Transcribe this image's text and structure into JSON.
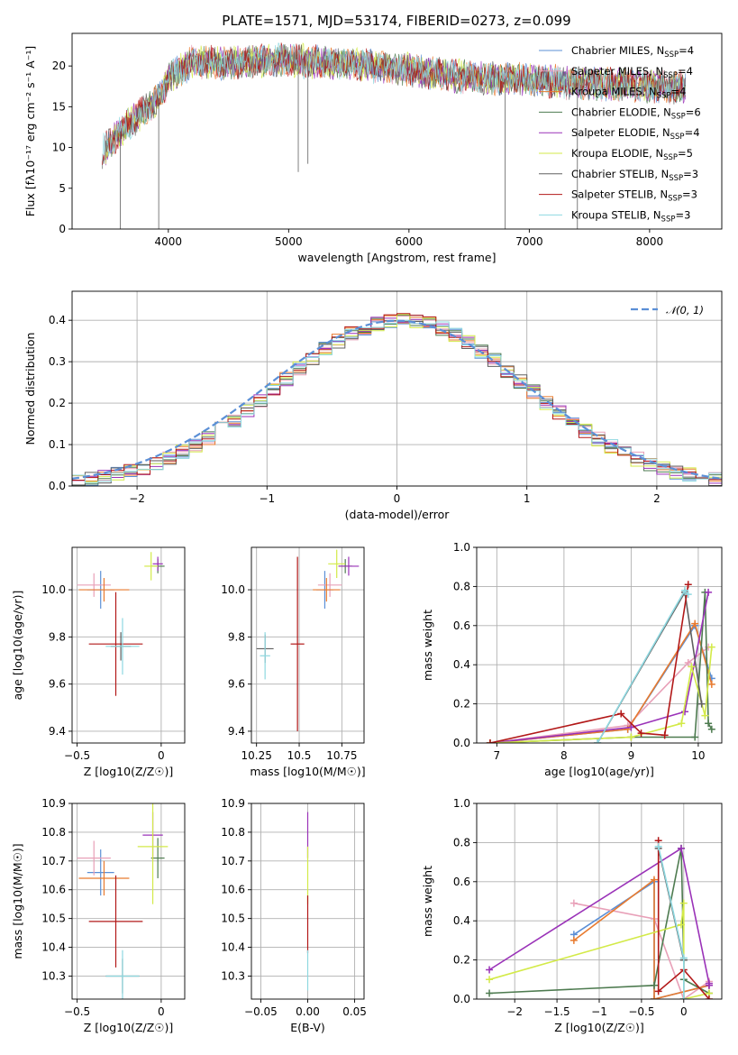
{
  "title": "PLATE=1571, MJD=53174, FIBERID=0273, z=0.099",
  "colors": {
    "chabrier_miles": "#5b8fd6",
    "salpeter_miles": "#e8a0b8",
    "kroupa_miles": "#e87a2e",
    "chabrier_elodie": "#4e7b50",
    "salpeter_elodie": "#9a32b8",
    "kroupa_elodie": "#d3ea48",
    "chabrier_stelib": "#606060",
    "salpeter_stelib": "#b21818",
    "kroupa_stelib": "#8ed8e0",
    "normal": "#5b8fd6"
  },
  "chart_data": [
    {
      "id": "spectrum",
      "type": "line",
      "title": "PLATE=1571, MJD=53174, FIBERID=0273, z=0.099",
      "xlabel": "wavelength [Angstrom, rest frame]",
      "ylabel": "Flux [fλ10⁻¹⁷ erg cm⁻² s⁻¹ A⁻¹]",
      "xlim": [
        3200,
        8600
      ],
      "ylim": [
        0,
        24
      ],
      "xticks": [
        4000,
        5000,
        6000,
        7000,
        8000
      ],
      "yticks": [
        0,
        5,
        10,
        15,
        20
      ],
      "legend_position": "upper right",
      "legend": [
        "Chabrier MILES, N_SSP=4",
        "Salpeter MILES, N_SSP=4",
        "Kroupa MILES, N_SSP=4",
        "Chabrier ELODIE, N_SSP=6",
        "Salpeter ELODIE, N_SSP=4",
        "Kroupa ELODIE, N_SSP=5",
        "Chabrier STELIB, N_SSP=3",
        "Salpeter STELIB, N_SSP=3",
        "Kroupa STELIB, N_SSP=3"
      ],
      "continuum": {
        "x": [
          3450,
          3600,
          3800,
          3950,
          4000,
          4200,
          4500,
          5000,
          5200,
          5500,
          6000,
          6500,
          7000,
          7500,
          8000,
          8300
        ],
        "y": [
          9.5,
          12,
          14.5,
          16.5,
          18.5,
          20.5,
          20.3,
          20.8,
          20.5,
          20.3,
          19.5,
          18.6,
          18.3,
          17.8,
          17.5,
          17.2
        ]
      },
      "spikes": [
        {
          "x": 3920,
          "y": 0
        },
        {
          "x": 5080,
          "y": 7
        },
        {
          "x": 5160,
          "y": 8
        },
        {
          "x": 6800,
          "y": 0
        },
        {
          "x": 7400,
          "y": 0
        },
        {
          "x": 3600,
          "y": 0
        }
      ]
    },
    {
      "id": "residuals",
      "type": "histogram",
      "xlabel": "(data-model)/error",
      "ylabel": "Normed distribution",
      "xlim": [
        -2.5,
        2.5
      ],
      "ylim": [
        0,
        0.47
      ],
      "xticks": [
        -2,
        -1,
        0,
        1,
        2
      ],
      "yticks": [
        0.0,
        0.1,
        0.2,
        0.3,
        0.4
      ],
      "legend_position": "upper right",
      "legend_label": "𝒩(0, 1)",
      "bin_width": 0.1,
      "bin_start": -2.5,
      "peak": 0.4,
      "peak_x": 0.1,
      "sigma": 0.95
    },
    {
      "id": "age-vs-Z",
      "type": "scatter",
      "xlabel": "Z [log10(Z/Z☉)]",
      "ylabel": "age  [log10(age/yr)]",
      "xlim": [
        -0.53,
        0.14
      ],
      "ylim": [
        9.35,
        10.18
      ],
      "xticks": [
        -0.5,
        0.0
      ],
      "yticks": [
        9.4,
        9.6,
        9.8,
        10.0
      ],
      "points": [
        {
          "series": "chabrier_miles",
          "x": -0.36,
          "y": 10.0,
          "xerr": 0.08,
          "yerr": 0.08
        },
        {
          "series": "salpeter_miles",
          "x": -0.4,
          "y": 10.02,
          "xerr": 0.1,
          "yerr": 0.05
        },
        {
          "series": "kroupa_miles",
          "x": -0.34,
          "y": 10.0,
          "xerr": 0.15,
          "yerr": 0.05
        },
        {
          "series": "chabrier_elodie",
          "x": -0.02,
          "y": 10.1,
          "xerr": 0.04,
          "yerr": 0.03
        },
        {
          "series": "salpeter_elodie",
          "x": -0.02,
          "y": 10.11,
          "xerr": 0.03,
          "yerr": 0.03
        },
        {
          "series": "kroupa_elodie",
          "x": -0.06,
          "y": 10.1,
          "xerr": 0.04,
          "yerr": 0.06
        },
        {
          "series": "chabrier_stelib",
          "x": -0.24,
          "y": 9.76,
          "xerr": 0.06,
          "yerr": 0.06
        },
        {
          "series": "salpeter_stelib",
          "x": -0.27,
          "y": 9.77,
          "xerr": 0.16,
          "yerr": 0.22
        },
        {
          "series": "kroupa_stelib",
          "x": -0.23,
          "y": 9.76,
          "xerr": 0.1,
          "yerr": 0.12
        }
      ]
    },
    {
      "id": "age-vs-mass",
      "type": "scatter",
      "xlabel": "mass [log10(M/M☉)]",
      "ylabel": "",
      "xlim": [
        10.22,
        10.88
      ],
      "ylim": [
        9.35,
        10.18
      ],
      "xticks": [
        10.25,
        10.5,
        10.75
      ],
      "yticks": [
        9.4,
        9.6,
        9.8,
        10.0
      ],
      "points": [
        {
          "series": "chabrier_miles",
          "x": 10.65,
          "y": 10.0,
          "xerr": 0.05,
          "yerr": 0.08
        },
        {
          "series": "salpeter_miles",
          "x": 10.68,
          "y": 10.02,
          "xerr": 0.07,
          "yerr": 0.05
        },
        {
          "series": "kroupa_miles",
          "x": 10.66,
          "y": 10.0,
          "xerr": 0.08,
          "yerr": 0.05
        },
        {
          "series": "chabrier_elodie",
          "x": 10.77,
          "y": 10.1,
          "xerr": 0.04,
          "yerr": 0.03
        },
        {
          "series": "salpeter_elodie",
          "x": 10.79,
          "y": 10.1,
          "xerr": 0.06,
          "yerr": 0.04
        },
        {
          "series": "kroupa_elodie",
          "x": 10.72,
          "y": 10.11,
          "xerr": 0.05,
          "yerr": 0.06
        },
        {
          "series": "chabrier_stelib",
          "x": 10.3,
          "y": 9.75,
          "xerr": 0.05,
          "yerr": 0.06
        },
        {
          "series": "salpeter_stelib",
          "x": 10.49,
          "y": 9.77,
          "xerr": 0.04,
          "yerr": 0.37
        },
        {
          "series": "kroupa_stelib",
          "x": 10.3,
          "y": 9.72,
          "xerr": 0.03,
          "yerr": 0.1
        }
      ]
    },
    {
      "id": "mass-weight-vs-age",
      "type": "line",
      "xlabel": "age  [log10(age/yr)]",
      "ylabel": "mass weight",
      "xlim": [
        6.7,
        10.35
      ],
      "ylim": [
        0,
        1.0
      ],
      "xticks": [
        7,
        8,
        9,
        10
      ],
      "yticks": [
        0.0,
        0.2,
        0.4,
        0.6,
        0.8,
        1.0
      ],
      "series": [
        {
          "series": "chabrier_miles",
          "x": [
            6.9,
            8.95,
            9.95,
            10.2
          ],
          "y": [
            0.0,
            0.07,
            0.6,
            0.33
          ]
        },
        {
          "series": "salpeter_miles",
          "x": [
            6.9,
            8.95,
            9.85,
            10.15
          ],
          "y": [
            0.0,
            0.09,
            0.41,
            0.49
          ]
        },
        {
          "series": "kroupa_miles",
          "x": [
            6.9,
            8.95,
            9.95,
            10.2
          ],
          "y": [
            0.0,
            0.07,
            0.61,
            0.3
          ]
        },
        {
          "series": "chabrier_elodie",
          "x": [
            6.9,
            9.0,
            9.95,
            10.1,
            10.15,
            10.2
          ],
          "y": [
            0.0,
            0.03,
            0.03,
            0.77,
            0.1,
            0.07
          ]
        },
        {
          "series": "salpeter_elodie",
          "x": [
            6.9,
            9.0,
            9.8,
            10.15
          ],
          "y": [
            0.0,
            0.08,
            0.16,
            0.77
          ]
        },
        {
          "series": "kroupa_elodie",
          "x": [
            6.9,
            9.0,
            9.75,
            9.9,
            10.1,
            10.2
          ],
          "y": [
            0.0,
            0.03,
            0.1,
            0.39,
            0.14,
            0.49
          ]
        },
        {
          "series": "chabrier_stelib",
          "x": [
            8.5,
            9.8,
            10.05
          ],
          "y": [
            0.0,
            0.77,
            0.2
          ]
        },
        {
          "series": "salpeter_stelib",
          "x": [
            6.9,
            8.85,
            9.15,
            9.5,
            9.85
          ],
          "y": [
            0.0,
            0.15,
            0.05,
            0.04,
            0.81
          ]
        },
        {
          "series": "kroupa_stelib",
          "x": [
            8.5,
            9.8,
            9.85
          ],
          "y": [
            0.0,
            0.78,
            0.76
          ]
        }
      ]
    },
    {
      "id": "mass-vs-Z",
      "type": "scatter",
      "xlabel": "Z [log10(Z/Z☉)]",
      "ylabel": "mass [log10(M/M☉)]",
      "xlim": [
        -0.53,
        0.14
      ],
      "ylim": [
        10.22,
        10.9
      ],
      "xticks": [
        -0.5,
        0.0
      ],
      "yticks": [
        10.3,
        10.4,
        10.5,
        10.6,
        10.7,
        10.8,
        10.9
      ],
      "points": [
        {
          "series": "chabrier_miles",
          "x": -0.36,
          "y": 10.66,
          "xerr": 0.08,
          "yerr": 0.08
        },
        {
          "series": "salpeter_miles",
          "x": -0.4,
          "y": 10.71,
          "xerr": 0.1,
          "yerr": 0.06
        },
        {
          "series": "kroupa_miles",
          "x": -0.34,
          "y": 10.64,
          "xerr": 0.15,
          "yerr": 0.06
        },
        {
          "series": "chabrier_elodie",
          "x": -0.02,
          "y": 10.71,
          "xerr": 0.04,
          "yerr": 0.07
        },
        {
          "series": "salpeter_elodie",
          "x": -0.05,
          "y": 10.79,
          "xerr": 0.06,
          "yerr": 0.08
        },
        {
          "series": "kroupa_elodie",
          "x": -0.05,
          "y": 10.75,
          "xerr": 0.09,
          "yerr": 0.2
        },
        {
          "series": "chabrier_stelib",
          "x": -0.23,
          "y": 10.3,
          "xerr": 0.1,
          "yerr": 0.06
        },
        {
          "series": "salpeter_stelib",
          "x": -0.27,
          "y": 10.49,
          "xerr": 0.16,
          "yerr": 0.16
        },
        {
          "series": "kroupa_stelib",
          "x": -0.23,
          "y": 10.3,
          "xerr": 0.1,
          "yerr": 0.09
        }
      ]
    },
    {
      "id": "mass-vs-ebv",
      "type": "scatter",
      "xlabel": "E(B-V)",
      "ylabel": "",
      "xlim": [
        -0.06,
        0.06
      ],
      "ylim": [
        10.22,
        10.9
      ],
      "xticks": [
        -0.05,
        0.0,
        0.05
      ],
      "xticklabels": [
        "−0.05",
        "0.00",
        "0.05"
      ],
      "yticks": [
        10.3,
        10.4,
        10.5,
        10.6,
        10.7,
        10.8,
        10.9
      ],
      "points": [
        {
          "series": "salpeter_elodie",
          "x": 0.0,
          "y": 10.79,
          "xerr": 0.0,
          "yerr": 0.08
        },
        {
          "series": "kroupa_elodie",
          "x": 0.0,
          "y": 10.65,
          "xerr": 0.0,
          "yerr": 0.1
        },
        {
          "series": "salpeter_stelib",
          "x": 0.0,
          "y": 10.48,
          "xerr": 0.0,
          "yerr": 0.1
        },
        {
          "series": "kroupa_stelib",
          "x": 0.0,
          "y": 10.32,
          "xerr": 0.0,
          "yerr": 0.07
        }
      ]
    },
    {
      "id": "mass-weight-vs-Z",
      "type": "line",
      "xlabel": "Z [log10(Z/Z☉)]",
      "ylabel": "mass weight",
      "xlim": [
        -2.45,
        0.45
      ],
      "ylim": [
        0,
        1.0
      ],
      "xticks": [
        -2.0,
        -1.5,
        -1.0,
        -0.5,
        0.0
      ],
      "yticks": [
        0.0,
        0.2,
        0.4,
        0.6,
        0.8,
        1.0
      ],
      "series": [
        {
          "series": "chabrier_miles",
          "x": [
            -1.3,
            -0.35,
            -0.35,
            0.3
          ],
          "y": [
            0.33,
            0.6,
            0.0,
            0.07
          ]
        },
        {
          "series": "salpeter_miles",
          "x": [
            -1.3,
            -0.35,
            0.0,
            0.3
          ],
          "y": [
            0.49,
            0.41,
            0.0,
            0.09
          ]
        },
        {
          "series": "kroupa_miles",
          "x": [
            -1.3,
            -0.35,
            -0.35,
            0.3
          ],
          "y": [
            0.3,
            0.61,
            0.0,
            0.07
          ]
        },
        {
          "series": "chabrier_elodie",
          "x": [
            -2.3,
            -0.35,
            -0.03,
            0.0,
            0.0,
            0.3
          ],
          "y": [
            0.03,
            0.07,
            0.77,
            0.2,
            0.1,
            0.03
          ]
        },
        {
          "series": "salpeter_elodie",
          "x": [
            -2.3,
            -0.03,
            0.3,
            0.3
          ],
          "y": [
            0.15,
            0.77,
            0.08,
            0.07
          ]
        },
        {
          "series": "kroupa_elodie",
          "x": [
            -2.3,
            -0.03,
            0.0,
            0.0,
            0.3
          ],
          "y": [
            0.1,
            0.38,
            0.49,
            0.0,
            0.03
          ]
        },
        {
          "series": "chabrier_stelib",
          "x": [
            -0.3,
            0.0,
            0.0
          ],
          "y": [
            0.77,
            0.2,
            0.0
          ]
        },
        {
          "series": "salpeter_stelib",
          "x": [
            -0.3,
            -0.3,
            0.0,
            0.3
          ],
          "y": [
            0.81,
            0.04,
            0.15,
            0.0
          ]
        },
        {
          "series": "kroupa_stelib",
          "x": [
            -0.3,
            0.0,
            0.0
          ],
          "y": [
            0.78,
            0.21,
            0.0
          ]
        }
      ]
    }
  ]
}
